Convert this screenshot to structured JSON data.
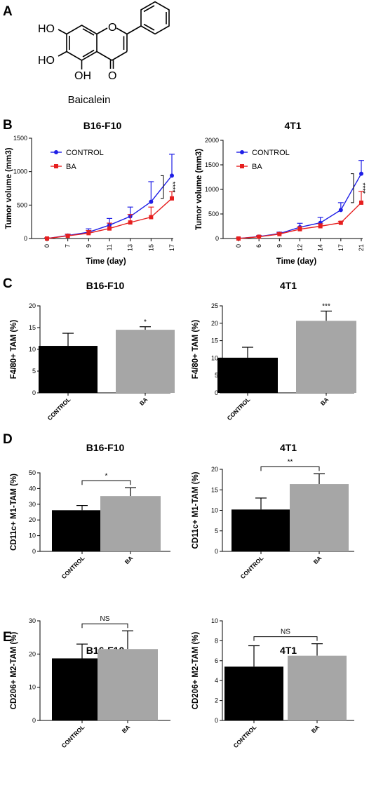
{
  "panel_letters": {
    "a": "A",
    "b": "B",
    "c": "C",
    "d": "D",
    "e": "E"
  },
  "molecule": {
    "name": "Baicalein",
    "atom_labels": {
      "o_ring": "O",
      "o_carbonyl": "O",
      "oh_top": "HO",
      "oh_mid": "HO",
      "oh_bottom": "OH"
    }
  },
  "colors": {
    "control_line": "#1f1fe6",
    "ba_line": "#e61f1f",
    "control_bar": "#000000",
    "ba_bar": "#a6a6a6"
  },
  "chart_data": [
    {
      "panel": "B",
      "type": "line",
      "title": "B16-F10",
      "xlabel": "Time (day)",
      "ylabel": "Tumor volume (mm3)",
      "categories": [
        "0",
        "7",
        "9",
        "11",
        "13",
        "15",
        "17"
      ],
      "ylim": [
        0,
        1500
      ],
      "yticks": [
        "0",
        "500",
        "1000",
        "1500"
      ],
      "legend_position": "top-left",
      "series": [
        {
          "name": "CONTROL",
          "color": "#1f1fe6",
          "marker": "circle",
          "values": [
            0,
            45,
            95,
            200,
            330,
            550,
            940
          ],
          "errors": [
            10,
            20,
            50,
            100,
            140,
            300,
            320
          ]
        },
        {
          "name": "BA",
          "color": "#e61f1f",
          "marker": "square",
          "values": [
            0,
            40,
            80,
            150,
            240,
            320,
            600
          ],
          "errors": [
            10,
            20,
            40,
            80,
            120,
            150,
            100
          ]
        }
      ],
      "significance": "****"
    },
    {
      "panel": "B",
      "type": "line",
      "title": "4T1",
      "xlabel": "Time (day)",
      "ylabel": "Tumor volume (mm3)",
      "categories": [
        "0",
        "6",
        "9",
        "12",
        "14",
        "17",
        "21"
      ],
      "ylim": [
        0,
        2000
      ],
      "yticks": [
        "0",
        "500",
        "1000",
        "1500",
        "2000"
      ],
      "legend_position": "top-left",
      "series": [
        {
          "name": "CONTROL",
          "color": "#1f1fe6",
          "marker": "circle",
          "values": [
            0,
            40,
            100,
            230,
            320,
            580,
            1320
          ],
          "errors": [
            10,
            20,
            30,
            80,
            110,
            150,
            270
          ]
        },
        {
          "name": "BA",
          "color": "#e61f1f",
          "marker": "square",
          "values": [
            0,
            35,
            90,
            190,
            250,
            320,
            730
          ],
          "errors": [
            10,
            15,
            25,
            50,
            50,
            30,
            230
          ]
        }
      ],
      "significance": "****"
    },
    {
      "panel": "C",
      "type": "bar",
      "title": "B16-F10",
      "ylabel": "F4/80+ TAM (%)",
      "categories": [
        "CONTROL",
        "BA"
      ],
      "values": [
        10.8,
        14.5
      ],
      "errors": [
        2.9,
        0.7
      ],
      "ylim": [
        0,
        20
      ],
      "yticks": [
        "0",
        "5",
        "10",
        "15",
        "20"
      ],
      "significance": "*",
      "bracket": false
    },
    {
      "panel": "C",
      "type": "bar",
      "title": "4T1",
      "ylabel": "F4/80+ TAM (%)",
      "categories": [
        "CONTROL",
        "BA"
      ],
      "values": [
        10.1,
        20.7
      ],
      "errors": [
        3.0,
        2.8
      ],
      "ylim": [
        0,
        25
      ],
      "yticks": [
        "0",
        "5",
        "10",
        "15",
        "20",
        "25"
      ],
      "significance": "***",
      "bracket": false
    },
    {
      "panel": "D",
      "type": "bar",
      "title": "B16-F10",
      "ylabel": "CD11c+ M1-TAM (%)",
      "categories": [
        "CONTROL",
        "BA"
      ],
      "values": [
        26.2,
        35.2
      ],
      "errors": [
        3.0,
        5.3
      ],
      "ylim": [
        0,
        50
      ],
      "yticks": [
        "0",
        "10",
        "20",
        "30",
        "40",
        "50"
      ],
      "significance": "*",
      "bracket": true
    },
    {
      "panel": "D",
      "type": "bar",
      "title": "4T1",
      "ylabel": "CD11c+ M1-TAM (%)",
      "categories": [
        "CONTROL",
        "BA"
      ],
      "values": [
        10.2,
        16.4
      ],
      "errors": [
        2.8,
        2.5
      ],
      "ylim": [
        0,
        20
      ],
      "yticks": [
        "0",
        "5",
        "10",
        "15",
        "20"
      ],
      "significance": "**",
      "bracket": true
    },
    {
      "panel": "E",
      "type": "bar",
      "title": "B16-F10",
      "ylabel": "CD206+ M2-TAM (%)",
      "categories": [
        "CONTROL",
        "BA"
      ],
      "values": [
        18.7,
        21.5
      ],
      "errors": [
        4.3,
        5.5
      ],
      "ylim": [
        0,
        30
      ],
      "yticks": [
        "0",
        "10",
        "20",
        "30"
      ],
      "significance": "NS",
      "bracket": true
    },
    {
      "panel": "E",
      "type": "bar",
      "title": "4T1",
      "ylabel": "CD206+ M2-TAM (%)",
      "categories": [
        "CONTROL",
        "BA"
      ],
      "values": [
        5.4,
        6.5
      ],
      "errors": [
        2.1,
        1.2
      ],
      "ylim": [
        0,
        10
      ],
      "yticks": [
        "0",
        "2",
        "4",
        "6",
        "8",
        "10"
      ],
      "significance": "NS",
      "bracket": true
    }
  ]
}
